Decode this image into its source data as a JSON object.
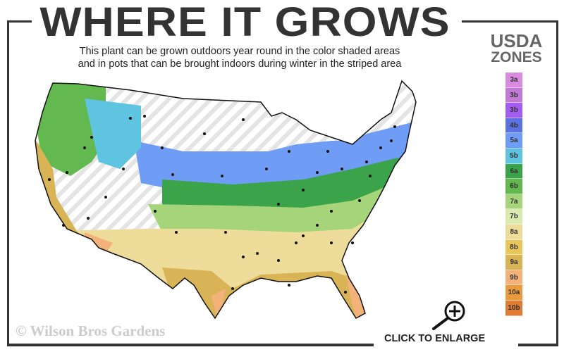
{
  "title": "WHERE IT GROWS",
  "subtitle": [
    "This plant can be grown outdoors year round in the color shaded areas",
    "and in pots that can be brought indoors during winter in the striped area"
  ],
  "legend": {
    "title_line1": "USDA",
    "title_line2": "ZONES",
    "zones": [
      {
        "label": "3a",
        "color": "#d98be0"
      },
      {
        "label": "3b",
        "color": "#c27ad6"
      },
      {
        "label": "3b",
        "color": "#a35df0"
      },
      {
        "label": "4b",
        "color": "#5a72e0"
      },
      {
        "label": "5a",
        "color": "#6f9cf5"
      },
      {
        "label": "5b",
        "color": "#5ec4e0"
      },
      {
        "label": "6a",
        "color": "#3ba34a"
      },
      {
        "label": "6b",
        "color": "#63b84f"
      },
      {
        "label": "7a",
        "color": "#a6d47a"
      },
      {
        "label": "7b",
        "color": "#dbebb0"
      },
      {
        "label": "8a",
        "color": "#eedd9a"
      },
      {
        "label": "8b",
        "color": "#e8c65a"
      },
      {
        "label": "9a",
        "color": "#d9b457"
      },
      {
        "label": "9b",
        "color": "#f2b27a"
      },
      {
        "label": "10a",
        "color": "#eb9a3d"
      },
      {
        "label": "10b",
        "color": "#e07d32"
      }
    ]
  },
  "watermark": "© Wilson Bros Gardens",
  "enlarge_label": "CLICK TO ENLARGE",
  "icons": {
    "enlarge": "magnifier-plus-icon"
  }
}
